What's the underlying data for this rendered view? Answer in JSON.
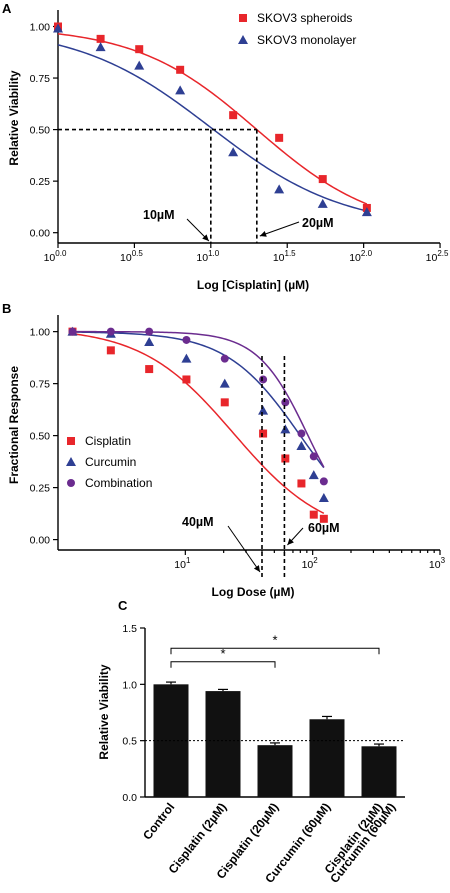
{
  "colors": {
    "red": "#e8262b",
    "blue": "#2e3f93",
    "purple": "#6b2c8f",
    "bar": "#111111"
  },
  "chart_data": [
    {
      "panel": "A",
      "type": "scatter",
      "xscale": "log10",
      "xlabel": "Log [Cisplatin] (µM)",
      "ylabel": "Relative Viability",
      "x_ticks": [
        "10",
        "0.0",
        "10",
        "0.5",
        "10",
        "1.0",
        "10",
        "1.5",
        "10",
        "2.0",
        "10",
        "2.5"
      ],
      "y_ticks": [
        "0.00",
        "0.25",
        "0.50",
        "0.75",
        "1.00"
      ],
      "xlim": [
        1,
        316
      ],
      "ylim": [
        -0.05,
        1.08
      ],
      "legend_position": "top-right",
      "series": [
        {
          "name": "SKOV3 spheroids",
          "color": "#e8262b",
          "marker": "square",
          "x": [
            1,
            1.9,
            3.4,
            6.3,
            14,
            28,
            54,
            105
          ],
          "y": [
            1.0,
            0.94,
            0.89,
            0.79,
            0.57,
            0.46,
            0.26,
            0.12
          ],
          "fit": {
            "ec50": 20,
            "top": 1.0,
            "bottom": 0.0,
            "hill": 1.1
          }
        },
        {
          "name": "SKOV3 monolayer",
          "color": "#2e3f93",
          "marker": "triangle",
          "x": [
            1,
            1.9,
            3.4,
            6.3,
            14,
            28,
            54,
            105
          ],
          "y": [
            0.99,
            0.9,
            0.81,
            0.69,
            0.39,
            0.21,
            0.14,
            0.1
          ],
          "fit": {
            "ec50": 10,
            "top": 1.0,
            "bottom": 0.02,
            "hill": 1.0
          }
        }
      ],
      "reference_line": {
        "y": 0.5
      },
      "annotations": [
        {
          "label": "10µM",
          "x": 10
        },
        {
          "label": "20µM",
          "x": 20
        }
      ]
    },
    {
      "panel": "B",
      "type": "scatter",
      "xscale": "log10",
      "xlabel": "Log Dose (µM)",
      "ylabel": "Fractional  Response",
      "x_ticks": [
        "10",
        "1",
        "10",
        "2",
        "10",
        "3"
      ],
      "y_ticks": [
        "0.00",
        "0.25",
        "0.50",
        "0.75",
        "1.00"
      ],
      "xlim": [
        1,
        1000
      ],
      "ylim": [
        -0.05,
        1.08
      ],
      "legend_position": "lower-left",
      "series": [
        {
          "name": "Cisplatin",
          "color": "#e8262b",
          "marker": "square",
          "x": [
            1.3,
            2.6,
            5.2,
            10.2,
            20.4,
            40.8,
            61,
            81.6,
            102,
            122.4
          ],
          "y": [
            1.0,
            0.91,
            0.82,
            0.77,
            0.66,
            0.51,
            0.39,
            0.27,
            0.12,
            0.1
          ],
          "fit": {
            "ec50": 24,
            "top": 1.02,
            "bottom": 0.0,
            "hill": 1.2
          }
        },
        {
          "name": "Curcumin",
          "color": "#2e3f93",
          "marker": "triangle",
          "x": [
            1.3,
            2.6,
            5.2,
            10.2,
            20.4,
            40.8,
            61,
            81.6,
            102,
            122.4
          ],
          "y": [
            1.0,
            0.99,
            0.95,
            0.87,
            0.75,
            0.62,
            0.53,
            0.45,
            0.31,
            0.2
          ],
          "fit": {
            "ec50": 80,
            "top": 1.0,
            "bottom": 0.0,
            "hill": 1.5
          }
        },
        {
          "name": "Combination",
          "color": "#6b2c8f",
          "marker": "circle",
          "x": [
            1.3,
            2.6,
            5.2,
            10.2,
            20.4,
            40.8,
            61,
            81.6,
            102,
            122.4
          ],
          "y": [
            1.0,
            1.0,
            1.0,
            0.96,
            0.87,
            0.77,
            0.66,
            0.51,
            0.4,
            0.28
          ],
          "fit": {
            "ec50": 92,
            "top": 1.0,
            "bottom": 0.0,
            "hill": 2.2
          }
        }
      ],
      "reference_lines_x": [
        40,
        60
      ],
      "annotations": [
        {
          "label": "40µM",
          "x": 40
        },
        {
          "label": "60µM",
          "x": 60
        }
      ]
    },
    {
      "panel": "C",
      "type": "bar",
      "ylabel": "Relative Viability",
      "categories": [
        "Control",
        "Cisplatin (2µM)",
        "Cisplatin (20µM)",
        "Curcumin (60µM)",
        "Cisplatin (2µM)\nCurcumin (60µM)"
      ],
      "values": [
        1.0,
        0.94,
        0.46,
        0.69,
        0.45
      ],
      "errors": [
        0.02,
        0.015,
        0.02,
        0.025,
        0.02
      ],
      "y_ticks": [
        "0.0",
        "0.5",
        "1.0",
        "1.5"
      ],
      "ylim": [
        0,
        1.5
      ],
      "reference_line": {
        "y": 0.5
      },
      "significance": [
        {
          "from": 0,
          "to": 2,
          "label": "*"
        },
        {
          "from": 0,
          "to": 4,
          "label": "*"
        }
      ]
    }
  ]
}
